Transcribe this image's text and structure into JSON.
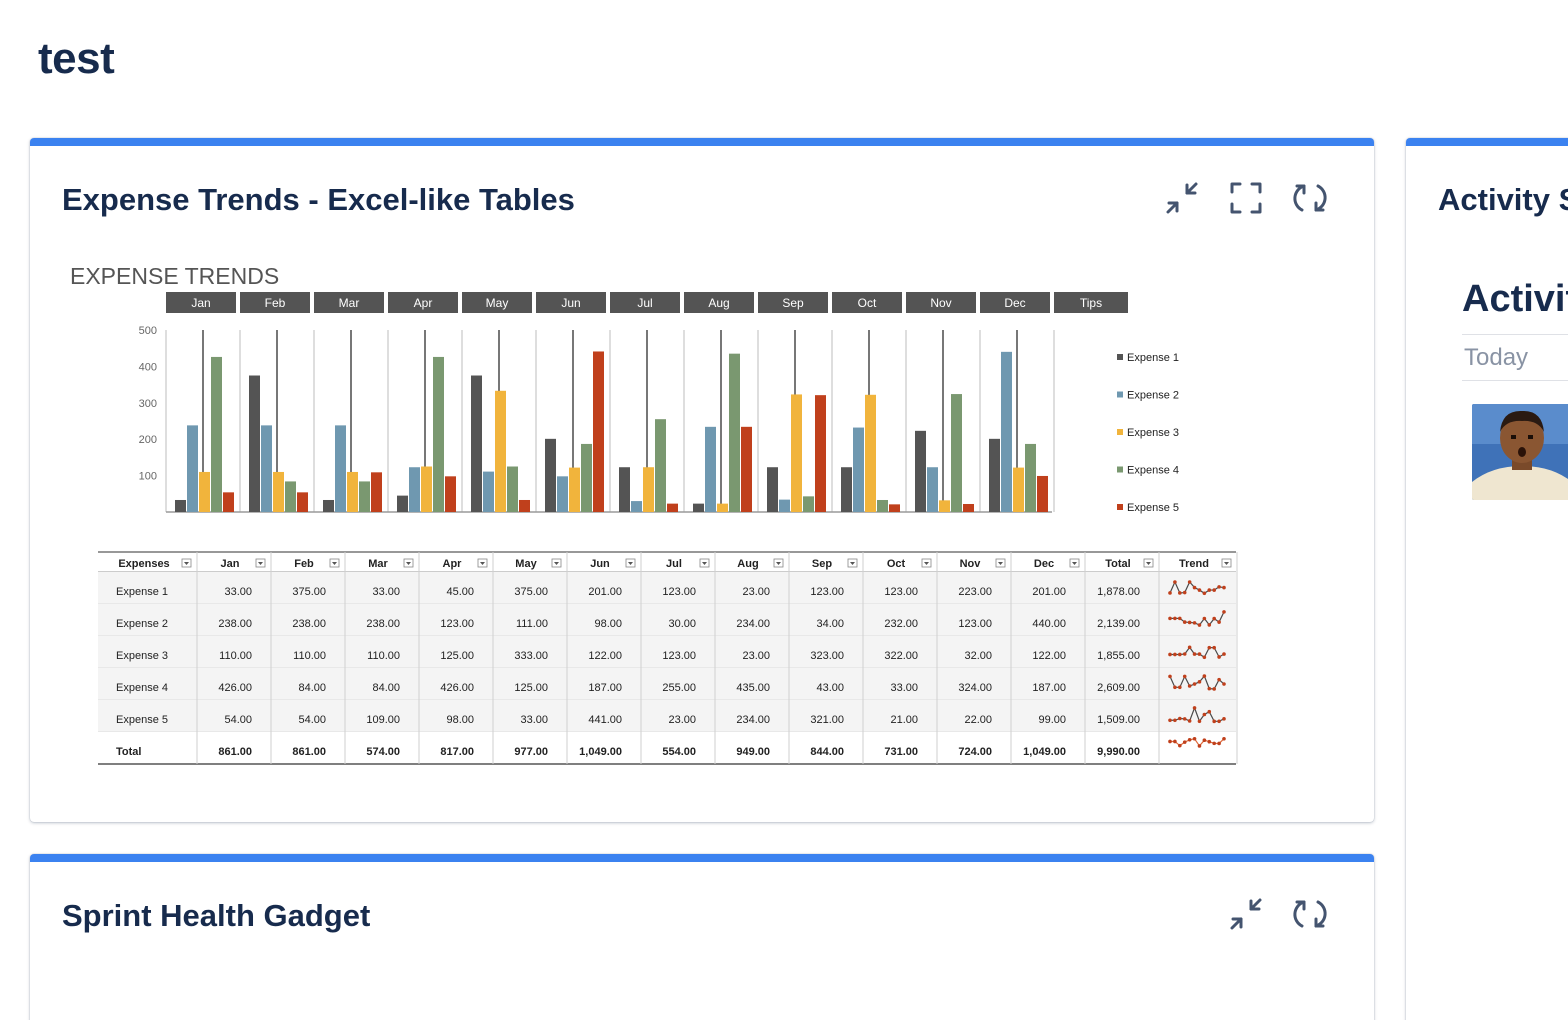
{
  "page": {
    "title": "test"
  },
  "expense_gadget": {
    "title": "Expense Trends - Excel-like Tables"
  },
  "sprint_gadget": {
    "title": "Sprint Health Gadget"
  },
  "activity_gadget": {
    "title": "Activity S",
    "heading": "Activit",
    "today_label": "Today"
  },
  "colors": {
    "accent": "#3b82f0",
    "header_fill": "#545454",
    "expense_1": "#545454",
    "expense_2": "#6f98b0",
    "expense_3": "#f1b43c",
    "expense_4": "#7a9870",
    "expense_5": "#c0401c"
  },
  "chart_data": {
    "type": "bar",
    "title": "EXPENSE TRENDS",
    "categories": [
      "Jan",
      "Feb",
      "Mar",
      "Apr",
      "May",
      "Jun",
      "Jul",
      "Aug",
      "Sep",
      "Oct",
      "Nov",
      "Dec"
    ],
    "header_extra": "Tips",
    "ylim": [
      0,
      500
    ],
    "yticks": [
      100,
      200,
      300,
      400,
      500
    ],
    "legend_position": "right",
    "series": [
      {
        "name": "Expense 1",
        "values": [
          33,
          375,
          33,
          45,
          375,
          201,
          123,
          23,
          123,
          123,
          223,
          201
        ]
      },
      {
        "name": "Expense 2",
        "values": [
          238,
          238,
          238,
          123,
          111,
          98,
          30,
          234,
          34,
          232,
          123,
          440
        ]
      },
      {
        "name": "Expense 3",
        "values": [
          110,
          110,
          110,
          125,
          333,
          122,
          123,
          23,
          323,
          322,
          32,
          122
        ]
      },
      {
        "name": "Expense 4",
        "values": [
          426,
          84,
          84,
          426,
          125,
          187,
          255,
          435,
          43,
          33,
          324,
          187
        ]
      },
      {
        "name": "Expense 5",
        "values": [
          54,
          54,
          109,
          98,
          33,
          441,
          23,
          234,
          321,
          21,
          22,
          99
        ]
      }
    ]
  },
  "table": {
    "headers": [
      "Expenses",
      "Jan",
      "Feb",
      "Mar",
      "Apr",
      "May",
      "Jun",
      "Jul",
      "Aug",
      "Sep",
      "Oct",
      "Nov",
      "Dec",
      "Total",
      "Trend"
    ],
    "rows": [
      {
        "label": "Expense 1",
        "cells": [
          "33.00",
          "375.00",
          "33.00",
          "45.00",
          "375.00",
          "201.00",
          "123.00",
          "23.00",
          "123.00",
          "123.00",
          "223.00",
          "201.00",
          "1,878.00"
        ]
      },
      {
        "label": "Expense 2",
        "cells": [
          "238.00",
          "238.00",
          "238.00",
          "123.00",
          "111.00",
          "98.00",
          "30.00",
          "234.00",
          "34.00",
          "232.00",
          "123.00",
          "440.00",
          "2,139.00"
        ]
      },
      {
        "label": "Expense 3",
        "cells": [
          "110.00",
          "110.00",
          "110.00",
          "125.00",
          "333.00",
          "122.00",
          "123.00",
          "23.00",
          "323.00",
          "322.00",
          "32.00",
          "122.00",
          "1,855.00"
        ]
      },
      {
        "label": "Expense 4",
        "cells": [
          "426.00",
          "84.00",
          "84.00",
          "426.00",
          "125.00",
          "187.00",
          "255.00",
          "435.00",
          "43.00",
          "33.00",
          "324.00",
          "187.00",
          "2,609.00"
        ]
      },
      {
        "label": "Expense 5",
        "cells": [
          "54.00",
          "54.00",
          "109.00",
          "98.00",
          "33.00",
          "441.00",
          "23.00",
          "234.00",
          "321.00",
          "21.00",
          "22.00",
          "99.00",
          "1,509.00"
        ]
      }
    ],
    "total": {
      "label": "Total",
      "cells": [
        "861.00",
        "861.00",
        "574.00",
        "817.00",
        "977.00",
        "1,049.00",
        "554.00",
        "949.00",
        "844.00",
        "731.00",
        "724.00",
        "1,049.00",
        "9,990.00"
      ]
    },
    "total_trend_values": [
      861,
      861,
      574,
      817,
      977,
      1049,
      554,
      949,
      844,
      731,
      724,
      1049
    ]
  },
  "icons": {
    "minimize": "minimize-icon",
    "fullscreen": "fullscreen-icon",
    "refresh": "refresh-icon"
  }
}
